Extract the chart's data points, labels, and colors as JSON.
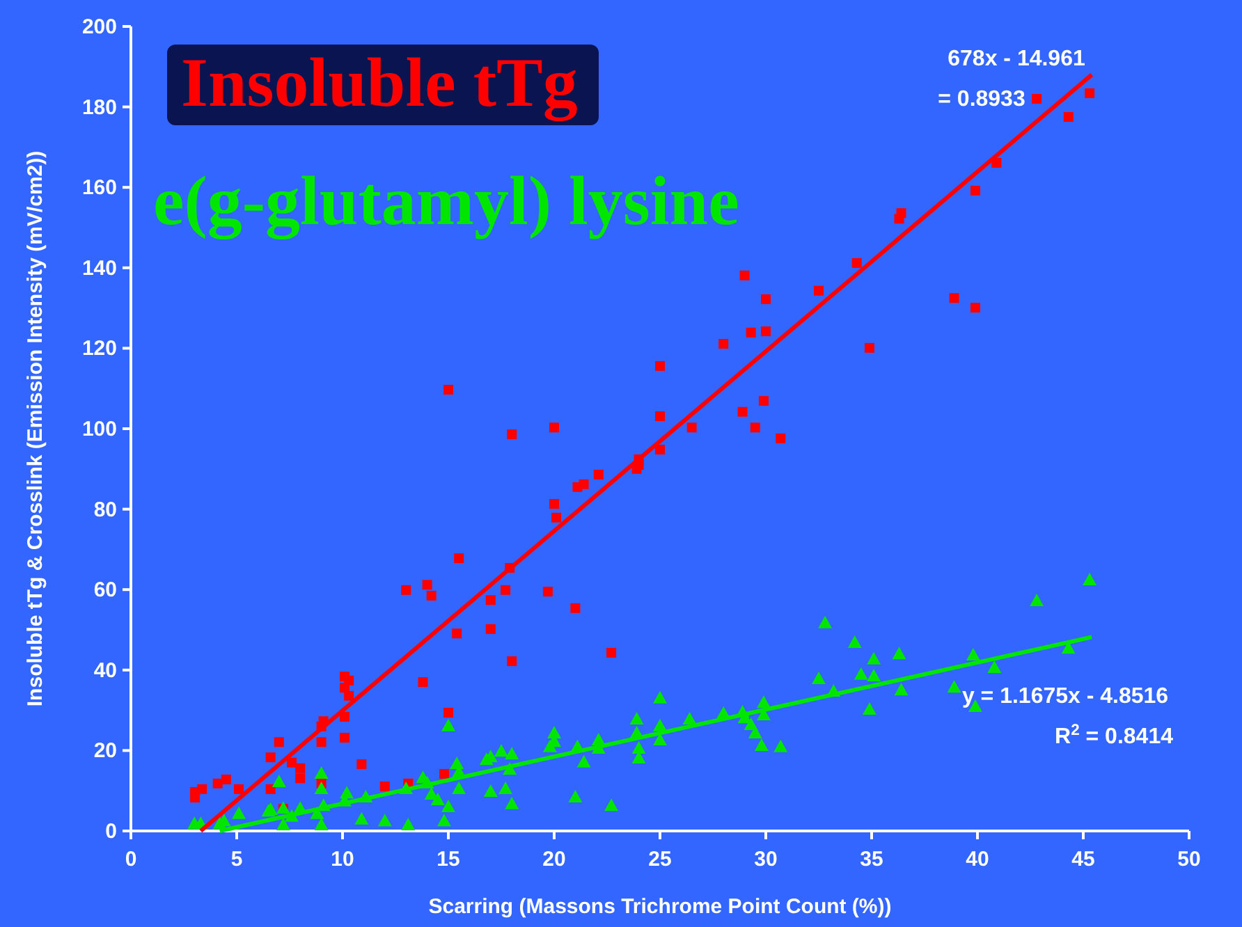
{
  "chart_data": {
    "type": "scatter",
    "xlabel": "Scarring (Massons Trichrome Point Count (%))",
    "ylabel": "Insoluble tTg & Crosslink (Emission Intensity (mV/cm2))",
    "xlim": [
      0,
      50
    ],
    "ylim": [
      0,
      200
    ],
    "xticks": [
      0,
      5,
      10,
      15,
      20,
      25,
      30,
      35,
      40,
      45,
      50
    ],
    "yticks": [
      0,
      20,
      40,
      60,
      80,
      100,
      120,
      140,
      160,
      180,
      200
    ],
    "grid": false,
    "legend": "top left",
    "annotations": [
      "678x - 14.961",
      "= 0.8933",
      "y = 1.1675x - 4.8516",
      "R$^{2}$ = 0.8414"
    ],
    "series": [
      {
        "name": "Insoluble tTg",
        "color": "#ff0000",
        "marker": "square",
        "x": [
          3.03,
          3.03,
          3.36,
          4.1,
          4.5,
          5.1,
          6.6,
          6.6,
          7.0,
          7.2,
          7.6,
          8.0,
          8.0,
          9.0,
          9.0,
          9.1,
          9.0,
          10.1,
          10.3,
          10.1,
          10.3,
          10.1,
          10.1,
          10.9,
          12.0,
          13.1,
          13.0,
          14.0,
          14.2,
          13.8,
          14.8,
          15.0,
          15.4,
          15.5,
          15.0,
          17.9,
          17.7,
          17.0,
          17.0,
          18.0,
          18.0,
          20.0,
          20.0,
          20.1,
          19.7,
          21.0,
          21.1,
          21.4,
          22.1,
          22.7,
          23.9,
          24.0,
          24.0,
          25.0,
          25.0,
          25.0,
          26.5,
          28.0,
          29.0,
          29.3,
          28.9,
          29.5,
          29.9,
          30.0,
          30.0,
          30.7,
          32.5,
          34.3,
          34.9,
          36.3,
          36.4,
          38.9,
          39.9,
          39.9,
          40.9,
          42.8,
          44.3,
          45.3
        ],
        "values": [
          9.7,
          8.3,
          10.4,
          11.8,
          12.8,
          10.4,
          10.4,
          18.3,
          22.1,
          5.5,
          17,
          15.6,
          13.1,
          22.1,
          26,
          27.3,
          11.8,
          38.4,
          37.4,
          35.6,
          33.6,
          28.4,
          23.2,
          16.6,
          11.1,
          11.8,
          59.9,
          61.2,
          58.5,
          37,
          14.2,
          29.4,
          49.1,
          67.8,
          109.7,
          65.4,
          59.9,
          57.4,
          50.2,
          42.2,
          98.6,
          100.3,
          81.3,
          77.9,
          59.5,
          55.4,
          85.5,
          86.2,
          88.6,
          44.3,
          90,
          92.4,
          91,
          103.1,
          94.8,
          115.6,
          100.3,
          121.1,
          138.1,
          123.9,
          104.2,
          100.3,
          106.9,
          132.2,
          124.2,
          97.6,
          134.3,
          141.2,
          120.1,
          152.2,
          153.6,
          132.5,
          130.1,
          159.2,
          166.1,
          182,
          177.5,
          183.4
        ]
      },
      {
        "name": "e(g-glutamyl) lysine",
        "color": "#00e600",
        "marker": "triangle",
        "x": [
          3.0,
          3.3,
          4.2,
          4.4,
          5.1,
          6.5,
          6.6,
          7.0,
          7.2,
          7.2,
          7.6,
          8.0,
          8.8,
          9.1,
          9.0,
          9.0,
          9.0,
          10.1,
          10.2,
          10.9,
          11.1,
          12.0,
          13.0,
          13.1,
          13.8,
          14.0,
          14.2,
          14.5,
          14.8,
          15.0,
          15.0,
          15.4,
          15.5,
          16.8,
          15.5,
          17.0,
          17.5,
          18.0,
          17.9,
          17.0,
          17.7,
          18.0,
          20.0,
          19.8,
          20.0,
          21.0,
          21.1,
          21.4,
          22.1,
          22.1,
          22.7,
          23.9,
          23.9,
          24.0,
          24.0,
          25.0,
          25.0,
          25.0,
          26.4,
          28.0,
          28.9,
          29.0,
          29.3,
          29.5,
          29.9,
          29.9,
          29.8,
          30.7,
          32.5,
          32.8,
          33.2,
          34.2,
          34.5,
          35.1,
          35.1,
          34.9,
          36.3,
          36.4,
          38.9,
          39.8,
          39.9,
          40.8,
          42.8,
          44.3,
          45.3
        ],
        "values": [
          1.7,
          1.7,
          1.7,
          2.4,
          4.2,
          4.8,
          5.2,
          12.1,
          5.5,
          1.4,
          3.5,
          5.5,
          4.2,
          6.2,
          10.4,
          14.2,
          1.4,
          7.3,
          9.3,
          2.8,
          8.3,
          2.4,
          10.4,
          1.4,
          13.1,
          11.8,
          9,
          7.6,
          2.4,
          5.9,
          26,
          16.6,
          10.4,
          17.6,
          14.5,
          18.3,
          19.7,
          19,
          15.2,
          9.7,
          10.4,
          6.6,
          24.2,
          20.8,
          22.1,
          8.3,
          20.8,
          17,
          22.5,
          20.4,
          6.2,
          27.7,
          24.2,
          20.4,
          18,
          32.9,
          26,
          22.5,
          27.7,
          29.1,
          29.4,
          28,
          26.3,
          24.2,
          31.8,
          28.7,
          21.1,
          20.8,
          37.7,
          51.6,
          34.6,
          46.7,
          38.8,
          42.6,
          38.4,
          30.1,
          43.9,
          34.9,
          35.6,
          43.6,
          30.8,
          40.5,
          57.1,
          45.3,
          62.3
        ]
      },
      {
        "type": "line",
        "color": "#ff0000",
        "marker": "none",
        "line_style": "solid",
        "x": [
          3.3,
          45.4
        ],
        "values": [
          0,
          188
        ]
      },
      {
        "type": "line",
        "color": "#00e600",
        "marker": "none",
        "line_style": "solid",
        "x": [
          4.2,
          45.4
        ],
        "values": [
          0,
          48.2
        ]
      }
    ]
  }
}
